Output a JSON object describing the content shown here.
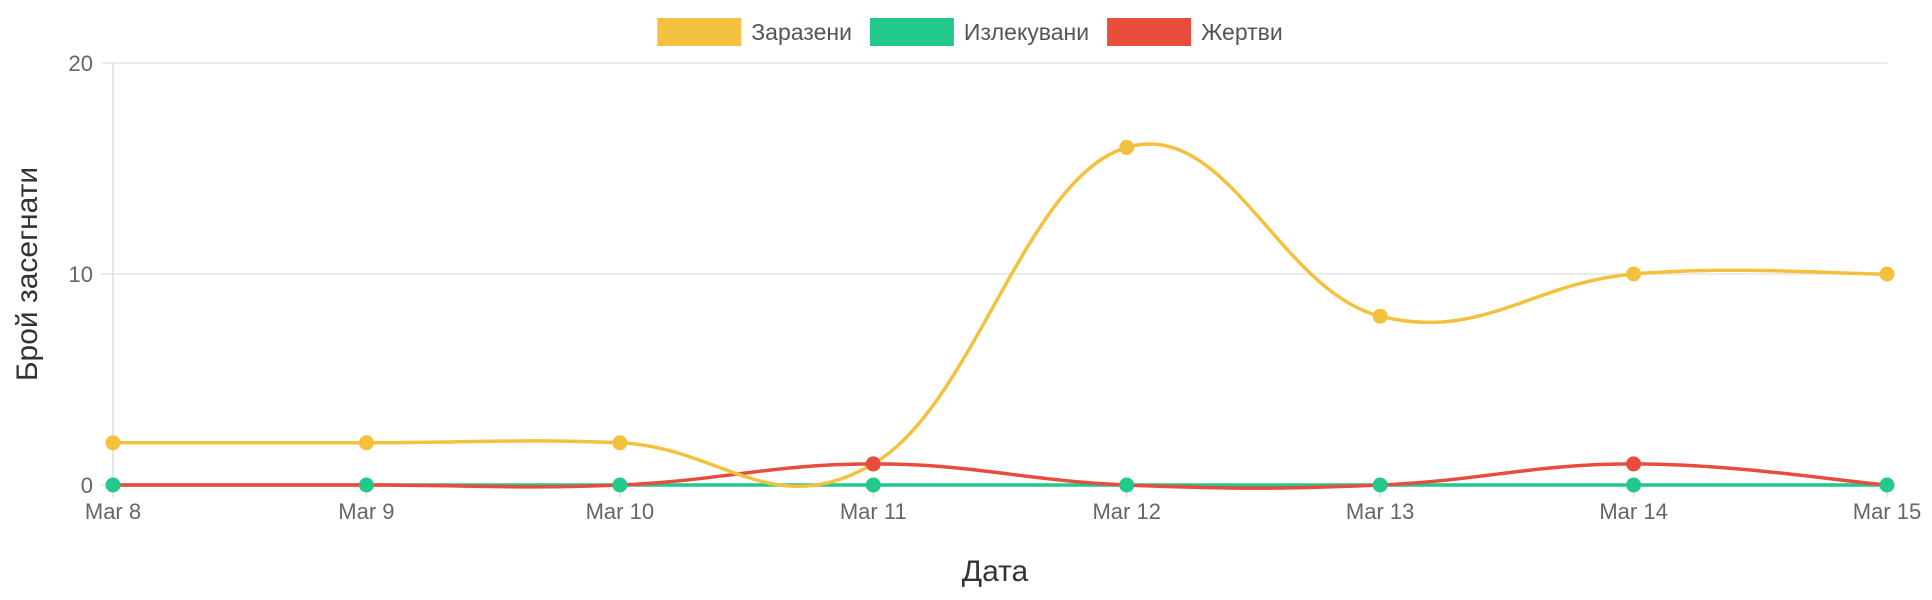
{
  "chart_data": {
    "type": "line",
    "x_tick_labels": [
      "Mar 8",
      "Mar 9",
      "Mar 10",
      "Mar 11",
      "Mar 12",
      "Mar 13",
      "Mar 14",
      "Mar 15"
    ],
    "y_tick_labels": [
      "0",
      "10",
      "20"
    ],
    "xlabel": "Дата",
    "ylabel": "Брой засегнати",
    "ylim": [
      0,
      20
    ],
    "grid": true,
    "legend_position": "top",
    "curve": "smooth",
    "series": [
      {
        "name": "Заразени",
        "color": "#F4C13E",
        "values": [
          2,
          2,
          2,
          1,
          16,
          8,
          10,
          10
        ]
      },
      {
        "name": "Излекувани",
        "color": "#21C98A",
        "values": [
          0,
          0,
          0,
          0,
          0,
          0,
          0,
          0
        ]
      },
      {
        "name": "Жертви",
        "color": "#E74C3C",
        "values": [
          0,
          0,
          0,
          1,
          0,
          0,
          1,
          0
        ]
      }
    ]
  }
}
